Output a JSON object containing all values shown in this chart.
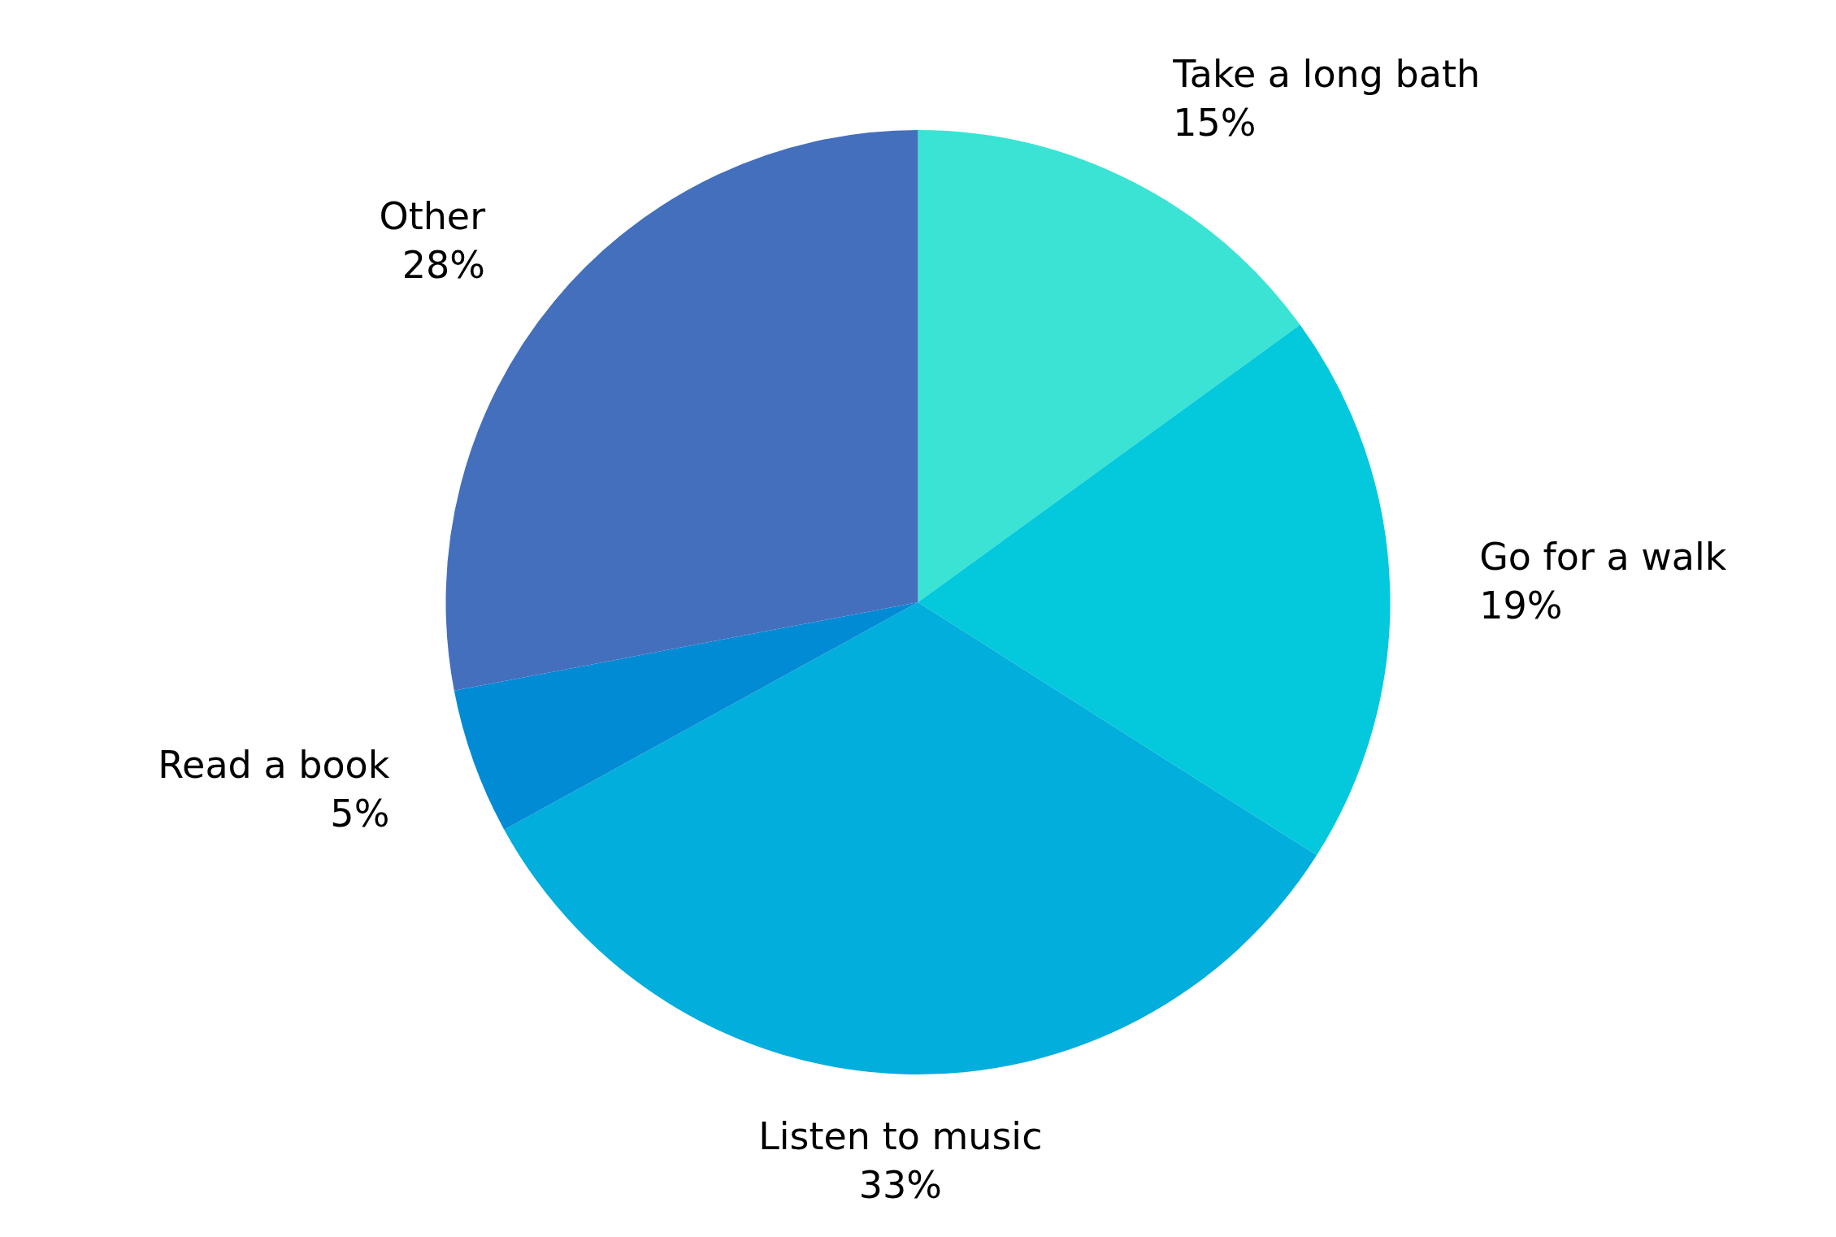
{
  "chart_data": {
    "type": "pie",
    "categories": [
      "Take a long bath",
      "Go for a walk",
      "Listen to music",
      "Read a book",
      "Other"
    ],
    "values": [
      15,
      19,
      33,
      5,
      28
    ],
    "colors": [
      "#3ae3d4",
      "#04c9dc",
      "#02aedc",
      "#028bd5",
      "#446fbd"
    ],
    "value_labels": [
      "15%",
      "19%",
      "33%",
      "5%",
      "28%"
    ],
    "legend": false
  }
}
